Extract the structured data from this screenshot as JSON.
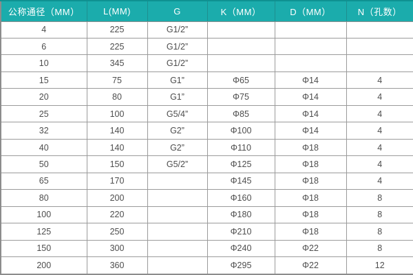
{
  "chart_data": {
    "type": "table",
    "title": "",
    "columns": [
      "公称通径（MM）",
      "L(MM)",
      "G",
      "K（MM）",
      "D（MM）",
      "N（孔数）"
    ],
    "rows": [
      [
        "4",
        "225",
        "G1/2”",
        "",
        "",
        ""
      ],
      [
        "6",
        "225",
        "G1/2”",
        "",
        "",
        ""
      ],
      [
        "10",
        "345",
        "G1/2”",
        "",
        "",
        ""
      ],
      [
        "15",
        "75",
        "G1”",
        "Φ65",
        "Φ14",
        "4"
      ],
      [
        "20",
        "80",
        "G1”",
        "Φ75",
        "Φ14",
        "4"
      ],
      [
        "25",
        "100",
        "G5/4”",
        "Φ85",
        "Φ14",
        "4"
      ],
      [
        "32",
        "140",
        "G2”",
        "Φ100",
        "Φ14",
        "4"
      ],
      [
        "40",
        "140",
        "G2”",
        "Φ110",
        "Φ18",
        "4"
      ],
      [
        "50",
        "150",
        "G5/2”",
        "Φ125",
        "Φ18",
        "4"
      ],
      [
        "65",
        "170",
        "",
        "Φ145",
        "Φ18",
        "4"
      ],
      [
        "80",
        "200",
        "",
        "Φ160",
        "Φ18",
        "8"
      ],
      [
        "100",
        "220",
        "",
        "Φ180",
        "Φ18",
        "8"
      ],
      [
        "125",
        "250",
        "",
        "Φ210",
        "Φ18",
        "8"
      ],
      [
        "150",
        "300",
        "",
        "Φ240",
        "Φ22",
        "8"
      ],
      [
        "200",
        "360",
        "",
        "Φ295",
        "Φ22",
        "12"
      ]
    ]
  },
  "colors": {
    "header_bg": "#1BACAC",
    "header_text": "#FFFFFF",
    "header_border": "#1E8F8F",
    "top_border": "#0F9191",
    "body_text": "#4D4D4D",
    "border": "#9A9A9A",
    "outer_border": "#8C8C8C",
    "row_bg": "#FFFFFF"
  }
}
